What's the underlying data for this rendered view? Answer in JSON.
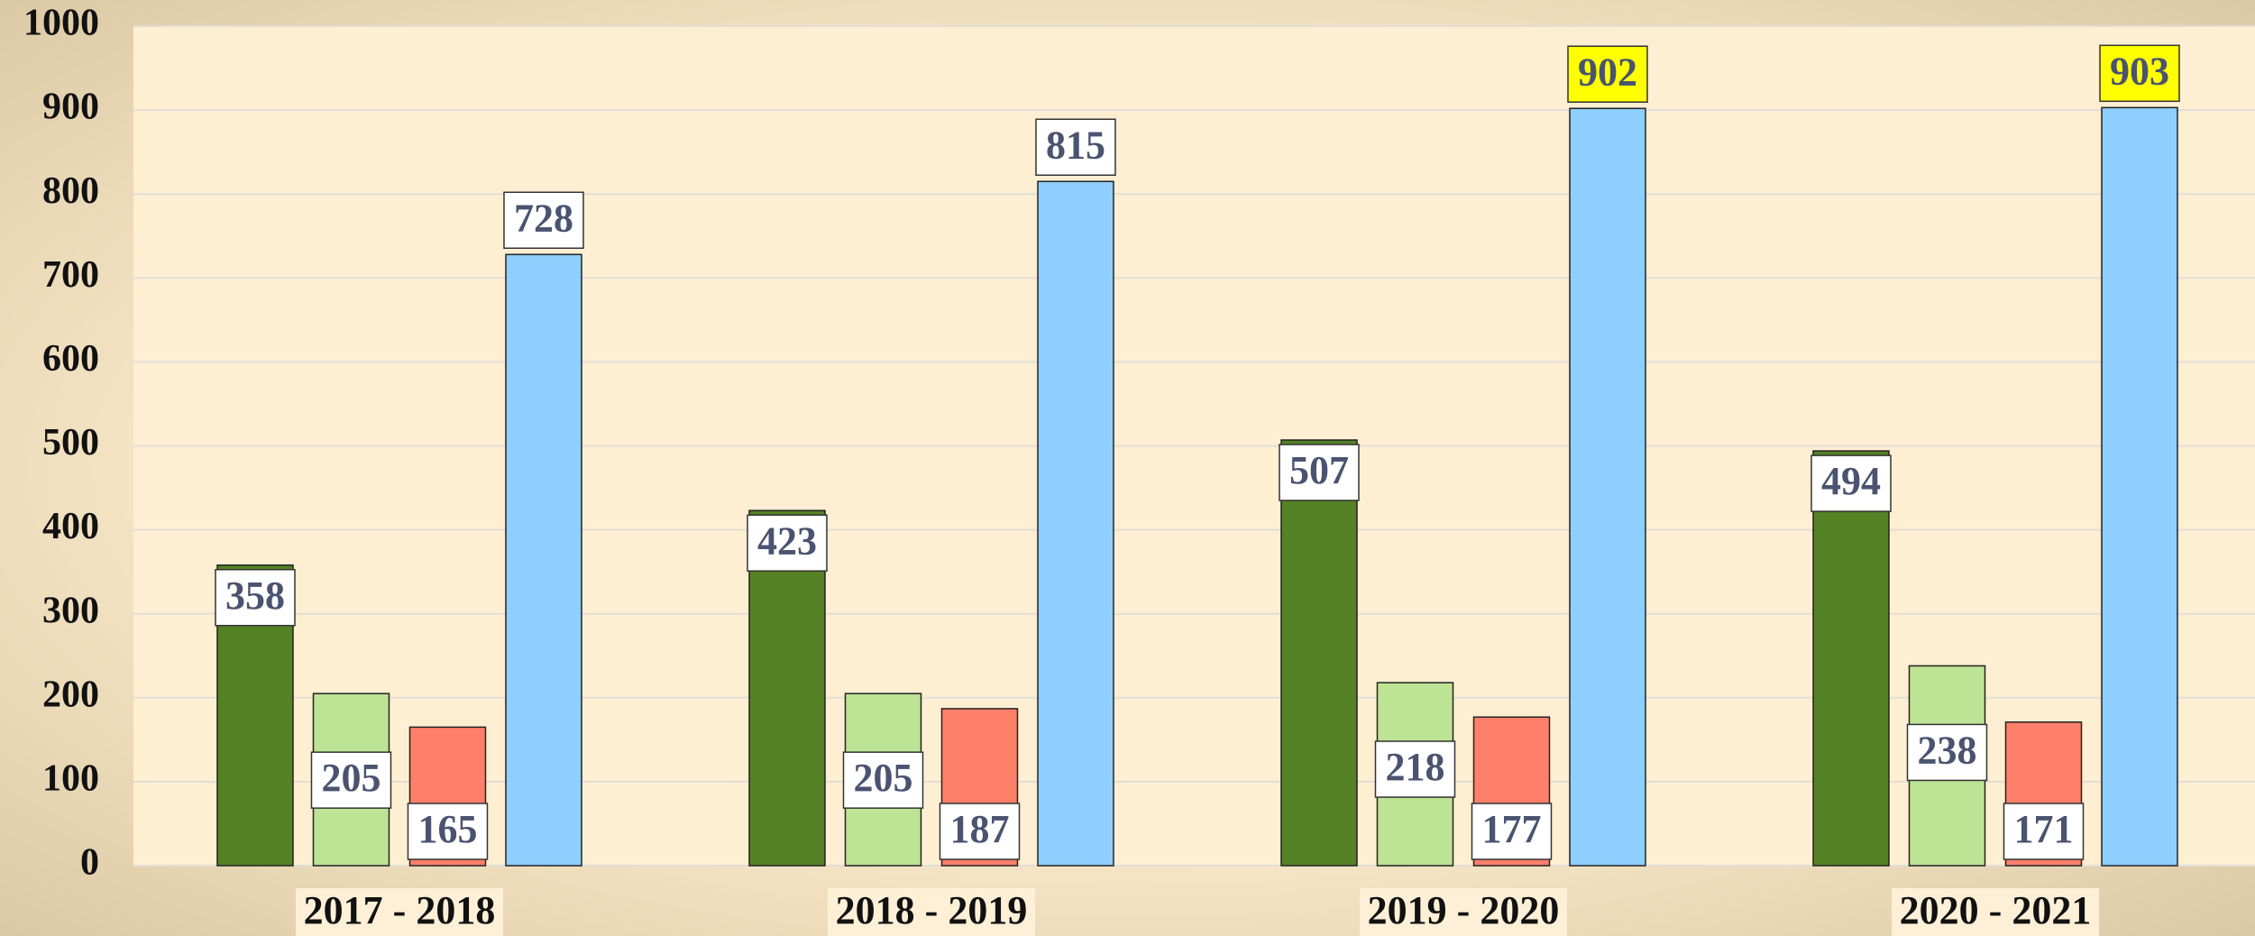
{
  "chart_data": {
    "type": "bar",
    "categories": [
      "2017 - 2018",
      "2018 - 2019",
      "2019 - 2020",
      "2020 - 2021"
    ],
    "series": [
      {
        "color": "#558224",
        "values": [
          358,
          423,
          507,
          494
        ]
      },
      {
        "color": "#bde394",
        "values": [
          205,
          205,
          218,
          238
        ]
      },
      {
        "color": "#fe7f6a",
        "values": [
          165,
          187,
          177,
          171
        ]
      },
      {
        "color": "#8ecfff",
        "values": [
          728,
          815,
          902,
          903
        ],
        "label_colors": [
          "#ffffff",
          "#ffffff",
          "#ffff00",
          "#ffff00"
        ]
      }
    ],
    "ylim": [
      0,
      1000
    ],
    "yticks": [
      0,
      100,
      200,
      300,
      400,
      500,
      600,
      700,
      800,
      900,
      1000
    ],
    "grid": true
  }
}
